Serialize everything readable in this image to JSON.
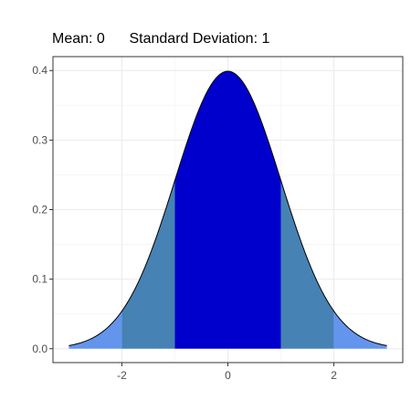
{
  "chart_data": {
    "type": "area",
    "title": "Mean: 0      Standard Deviation: 1",
    "xlabel": "",
    "ylabel": "",
    "xlim": [
      -3.3,
      3.3
    ],
    "ylim": [
      -0.02,
      0.42
    ],
    "x_ticks": [
      -2,
      0,
      2
    ],
    "x_tick_labels": [
      "-2",
      "0",
      "2"
    ],
    "y_ticks": [
      0.0,
      0.1,
      0.2,
      0.3,
      0.4
    ],
    "y_tick_labels": [
      "0.0",
      "0.1",
      "0.2",
      "0.3",
      "0.4"
    ],
    "grid": true,
    "curve": {
      "mean": 0,
      "sd": 1,
      "x_range": [
        -3,
        3
      ]
    },
    "bands": [
      {
        "name": "tail-left",
        "from": -3,
        "to": -2,
        "color": "#6495ED"
      },
      {
        "name": "one-to-two-sd-left",
        "from": -2,
        "to": -1,
        "color": "#4682B4"
      },
      {
        "name": "within-one-sd",
        "from": -1,
        "to": 1,
        "color": "#0000CD"
      },
      {
        "name": "one-to-two-sd-right",
        "from": 1,
        "to": 2,
        "color": "#4682B4"
      },
      {
        "name": "tail-right",
        "from": 2,
        "to": 3,
        "color": "#6495ED"
      }
    ]
  }
}
